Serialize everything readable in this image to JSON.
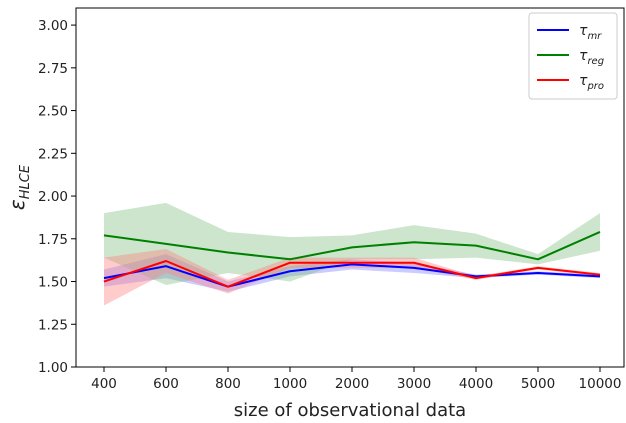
{
  "chart_data": {
    "type": "line",
    "title": "",
    "xlabel": "size of observational data",
    "ylabel": {
      "symbol": "ε",
      "subscript": "HLCE"
    },
    "categories": [
      "400",
      "600",
      "800",
      "1000",
      "2000",
      "3000",
      "4000",
      "5000",
      "10000"
    ],
    "ylim": [
      1.0,
      3.1
    ],
    "yticks": [
      "1.00",
      "1.25",
      "1.50",
      "1.75",
      "2.00",
      "2.25",
      "2.50",
      "2.75",
      "3.00"
    ],
    "grid": false,
    "legend_position": "top-right",
    "series": [
      {
        "name": "τ",
        "name_sub": "mr",
        "color": "#0000ff",
        "band_color": "#7f7fff",
        "values": [
          1.52,
          1.59,
          1.47,
          1.56,
          1.6,
          1.58,
          1.53,
          1.55,
          1.53
        ],
        "upper": [
          1.57,
          1.66,
          1.5,
          1.59,
          1.63,
          1.61,
          1.54,
          1.56,
          1.54
        ],
        "lower": [
          1.47,
          1.52,
          1.44,
          1.53,
          1.57,
          1.55,
          1.52,
          1.54,
          1.52
        ]
      },
      {
        "name": "τ",
        "name_sub": "reg",
        "color": "#008000",
        "band_color": "#7fbf7f",
        "values": [
          1.77,
          1.72,
          1.67,
          1.63,
          1.7,
          1.73,
          1.71,
          1.63,
          1.79
        ],
        "upper": [
          1.9,
          1.96,
          1.79,
          1.76,
          1.77,
          1.83,
          1.78,
          1.66,
          1.9
        ],
        "lower": [
          1.64,
          1.48,
          1.55,
          1.5,
          1.63,
          1.63,
          1.64,
          1.6,
          1.68
        ]
      },
      {
        "name": "τ",
        "name_sub": "pro",
        "color": "#ff0000",
        "band_color": "#ff7f7f",
        "values": [
          1.5,
          1.62,
          1.47,
          1.61,
          1.61,
          1.61,
          1.52,
          1.58,
          1.54
        ],
        "upper": [
          1.64,
          1.69,
          1.51,
          1.64,
          1.64,
          1.64,
          1.53,
          1.59,
          1.55
        ],
        "lower": [
          1.36,
          1.55,
          1.43,
          1.58,
          1.58,
          1.58,
          1.51,
          1.57,
          1.53
        ]
      }
    ]
  }
}
